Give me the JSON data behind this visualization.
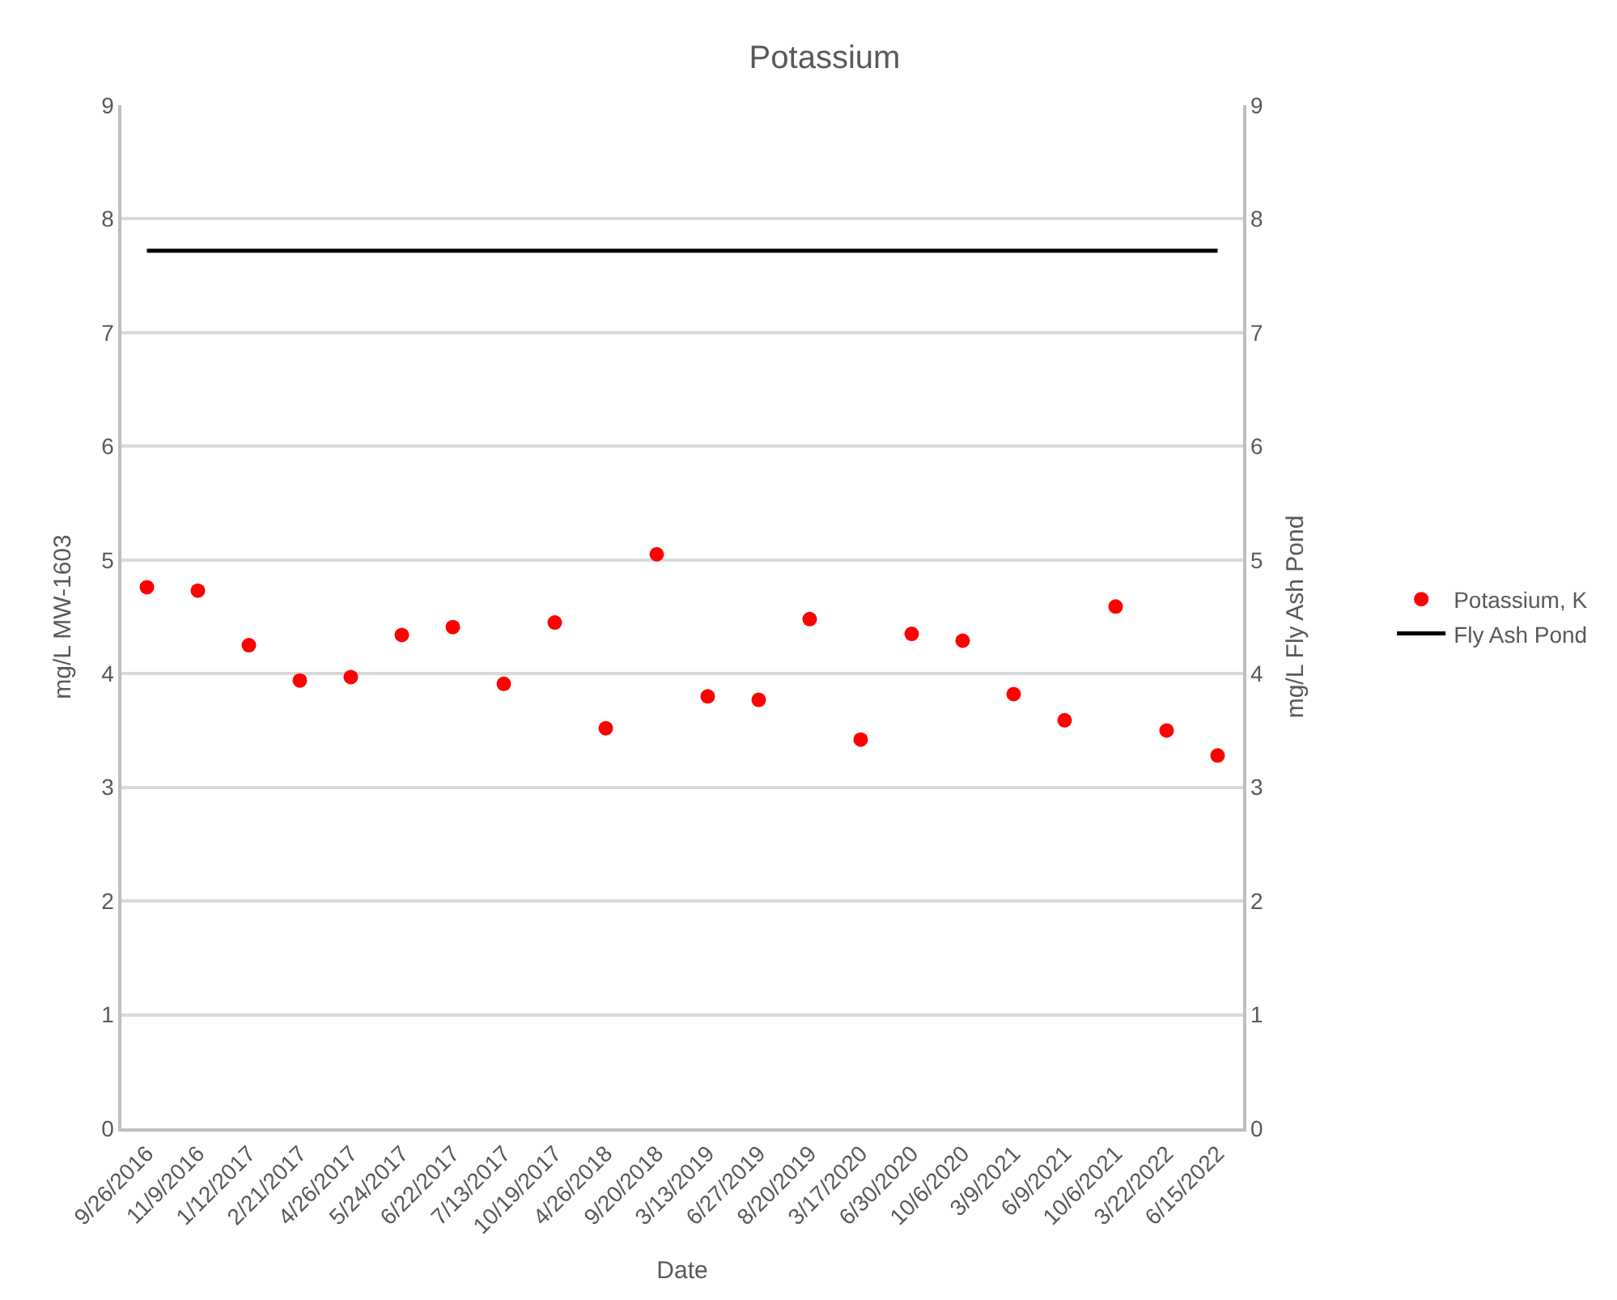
{
  "chart_data": {
    "type": "scatter",
    "title": "Potassium",
    "xlabel": "Date",
    "ylabel": "mg/L MW-1603",
    "y2label": "mg/L Fly Ash Pond",
    "categories": [
      "9/26/2016",
      "11/9/2016",
      "1/12/2017",
      "2/21/2017",
      "4/26/2017",
      "5/24/2017",
      "6/22/2017",
      "7/13/2017",
      "10/19/2017",
      "4/26/2018",
      "9/20/2018",
      "3/13/2019",
      "6/27/2019",
      "8/20/2019",
      "3/17/2020",
      "6/30/2020",
      "10/6/2020",
      "3/9/2021",
      "6/9/2021",
      "10/6/2021",
      "3/22/2022",
      "6/15/2022"
    ],
    "series": [
      {
        "name": "Potassium, K",
        "color": "#ff0000",
        "marker": "circle",
        "values": [
          4.76,
          4.73,
          4.25,
          3.94,
          3.97,
          4.34,
          4.41,
          3.91,
          4.45,
          3.52,
          5.05,
          3.8,
          3.77,
          4.48,
          3.42,
          4.35,
          4.29,
          3.82,
          3.59,
          4.59,
          3.5,
          3.28
        ]
      },
      {
        "name": "Fly Ash Pond",
        "color": "#000000",
        "type": "line",
        "axis": "y2",
        "marker": "none",
        "line_style": "solid",
        "values": [
          7.72,
          7.72,
          7.72,
          7.72,
          7.72,
          7.72,
          7.72,
          7.72,
          7.72,
          7.72,
          7.72,
          7.72,
          7.72,
          7.72,
          7.72,
          7.72,
          7.72,
          7.72,
          7.72,
          7.72,
          7.72,
          7.72
        ]
      }
    ],
    "ylim": [
      0,
      9
    ],
    "yticks": [
      0,
      1,
      2,
      3,
      4,
      5,
      6,
      7,
      8,
      9
    ],
    "y2lim": [
      0,
      9
    ],
    "y2ticks": [
      0,
      1,
      2,
      3,
      4,
      5,
      6,
      7,
      8,
      9
    ],
    "grid": "y",
    "legend": "right"
  }
}
